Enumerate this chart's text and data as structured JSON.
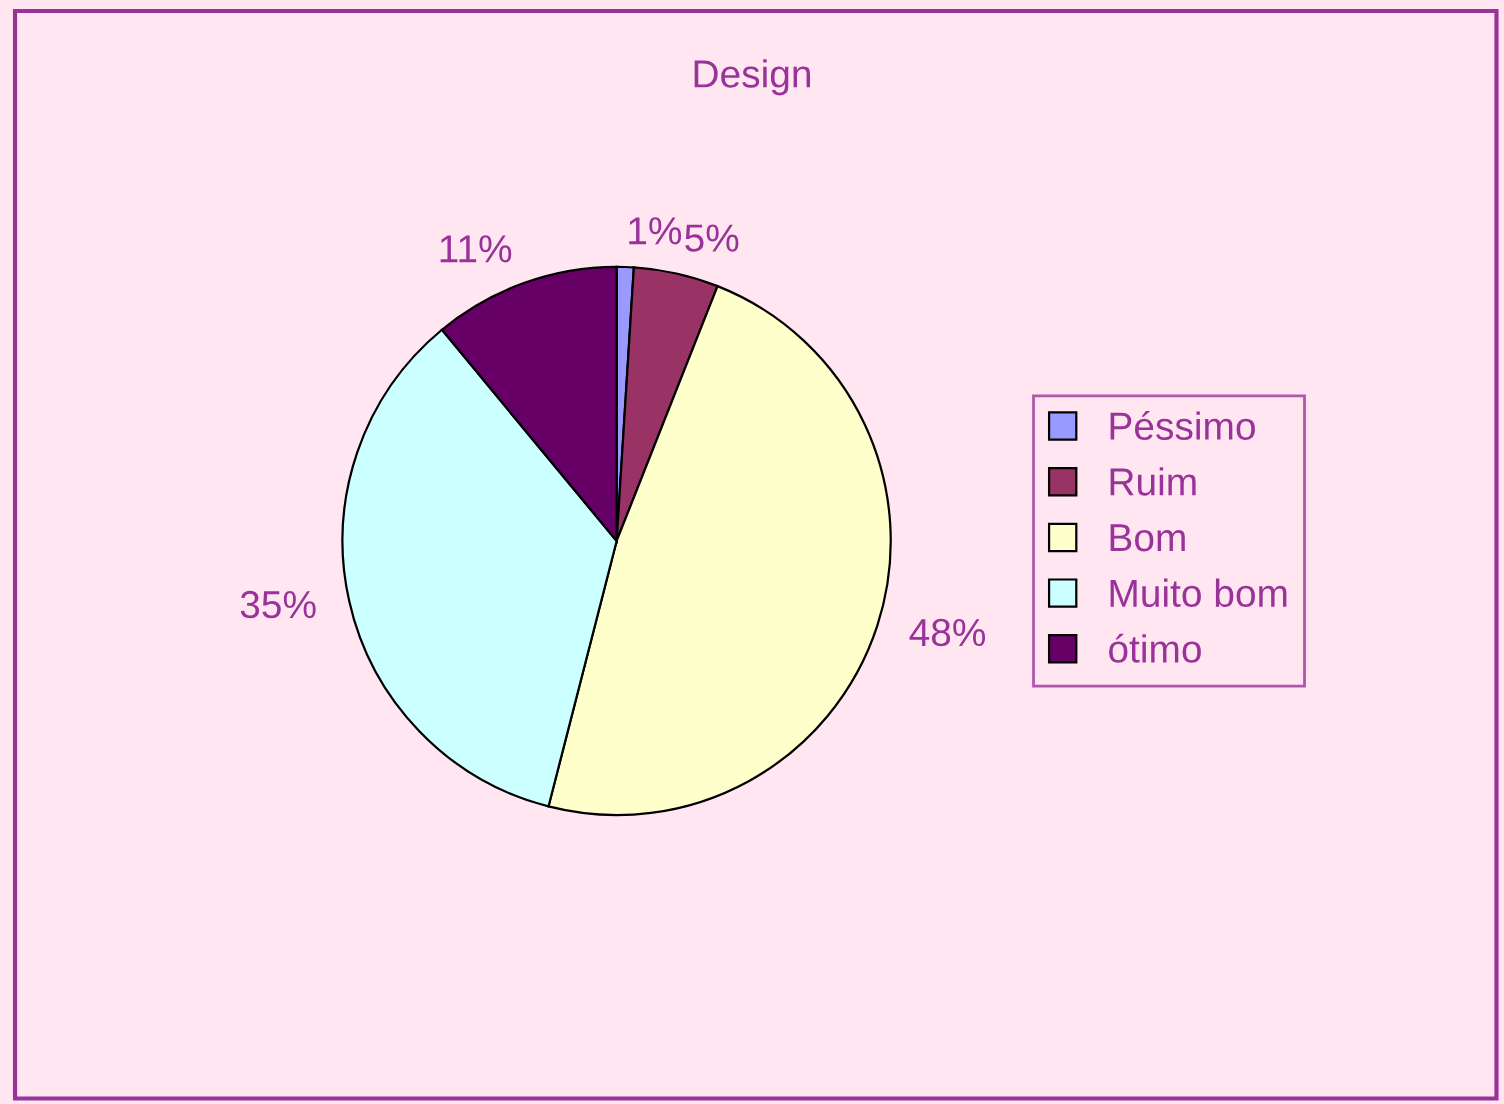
{
  "chart_data": {
    "type": "pie",
    "title": "Design",
    "categories": [
      "Péssimo",
      "Ruim",
      "Bom",
      "Muito bom",
      "ótimo"
    ],
    "values": [
      1,
      5,
      48,
      35,
      11
    ],
    "value_labels": [
      "1%",
      "5%",
      "48%",
      "35%",
      "11%"
    ],
    "colors": [
      "#9999ff",
      "#993366",
      "#ffffcc",
      "#ccffff",
      "#660066"
    ],
    "legend": "right"
  }
}
